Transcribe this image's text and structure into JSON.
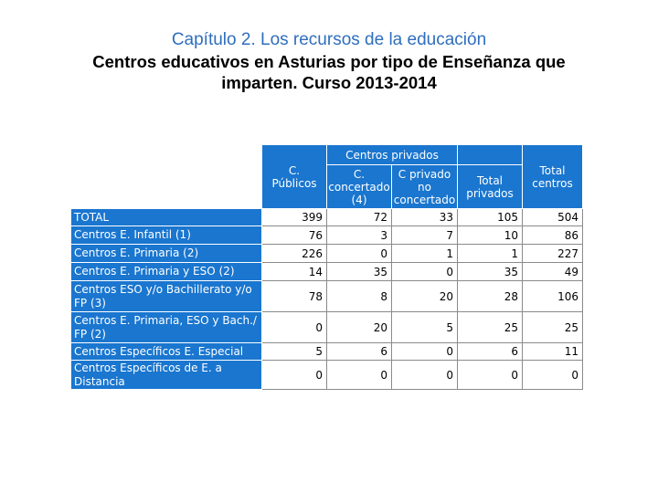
{
  "header": {
    "chapter": "Capítulo 2. Los recursos de la educación",
    "title_line1": "Centros educativos en Asturias por tipo de Enseñanza que",
    "title_line2": "imparten. Curso 2013-2014"
  },
  "table": {
    "group_header": "Centros privados",
    "col_public": [
      "C.",
      "Públicos"
    ],
    "col_concertado": [
      "C.",
      "concertado",
      "(4)"
    ],
    "col_no_concertado": [
      "C privado",
      "no",
      "concertado"
    ],
    "col_total_privados": [
      "Total",
      "privados"
    ],
    "col_total_centros": [
      "Total",
      "centros"
    ],
    "rows": [
      {
        "label": "TOTAL",
        "publicos": "399",
        "concertado": "72",
        "no_concertado": "33",
        "total_privados": "105",
        "total_centros": "504"
      },
      {
        "label": "Centros E. Infantil (1)",
        "publicos": "76",
        "concertado": "3",
        "no_concertado": "7",
        "total_privados": "10",
        "total_centros": "86"
      },
      {
        "label": "Centros E. Primaria (2)",
        "publicos": "226",
        "concertado": "0",
        "no_concertado": "1",
        "total_privados": "1",
        "total_centros": "227"
      },
      {
        "label": "Centros E. Primaria y ESO (2)",
        "publicos": "14",
        "concertado": "35",
        "no_concertado": "0",
        "total_privados": "35",
        "total_centros": "49"
      },
      {
        "label": "Centros ESO y/o Bachillerato y/o FP (3)",
        "publicos": "78",
        "concertado": "8",
        "no_concertado": "20",
        "total_privados": "28",
        "total_centros": "106"
      },
      {
        "label": "Centros E. Primaria, ESO y Bach./ FP (2)",
        "publicos": "0",
        "concertado": "20",
        "no_concertado": "5",
        "total_privados": "25",
        "total_centros": "25"
      },
      {
        "label": "Centros Específicos E. Especial",
        "publicos": "5",
        "concertado": "6",
        "no_concertado": "0",
        "total_privados": "6",
        "total_centros": "11"
      },
      {
        "label": "Centros Específicos de E. a Distancia",
        "publicos": "0",
        "concertado": "0",
        "no_concertado": "0",
        "total_privados": "0",
        "total_centros": "0"
      }
    ]
  }
}
